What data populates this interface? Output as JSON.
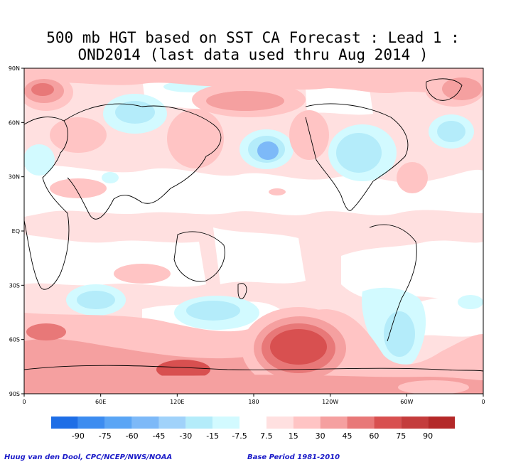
{
  "title": {
    "line1": "500 mb HGT based on SST CA Forecast : Lead 1 :",
    "line2": "OND2014 (last data used thru Aug 2014 )"
  },
  "map": {
    "variable": "500 mb HGT anomaly",
    "lon_labels": [
      "0",
      "60E",
      "120E",
      "180",
      "120W",
      "60W",
      "0"
    ],
    "lat_labels": [
      "90N",
      "60N",
      "30N",
      "EQ",
      "30S",
      "60S",
      "90S"
    ],
    "lon_range": [
      0,
      360
    ],
    "lat_range": [
      -90,
      90
    ]
  },
  "colorbar": {
    "labels": [
      "-90",
      "-75",
      "-60",
      "-45",
      "-30",
      "-15",
      "-7.5",
      "7.5",
      "15",
      "30",
      "45",
      "60",
      "75",
      "90"
    ],
    "colors": [
      "#1e6ee6",
      "#3c8cf0",
      "#5aa5f5",
      "#7db9f8",
      "#a0d2fa",
      "#b4ecfa",
      "#d2faff",
      "#ffffff",
      "#ffe0e0",
      "#ffc4c4",
      "#f5a0a0",
      "#e87878",
      "#d85050",
      "#c43c3c",
      "#b42828"
    ]
  },
  "colors": {
    "neutral": "#ffffff",
    "pos_light": "#ffe0e0",
    "pos_mid": "#ffc4c4",
    "pos_strong": "#f5a0a0",
    "pos_stronger": "#e87878",
    "pos_strongest": "#d85050",
    "neg_light": "#d2faff",
    "neg_mid": "#b4ecfa",
    "neg_strong": "#7db9f8"
  },
  "credits": {
    "left": "Huug van den Dool, CPC/NCEP/NWS/NOAA",
    "right": "Base Period 1981-2010"
  }
}
